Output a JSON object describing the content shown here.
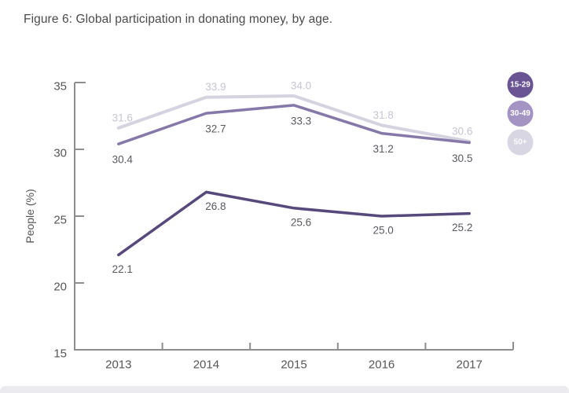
{
  "page": {
    "title": "Figure 6: Global participation in donating money, by age.",
    "background": "#ffffff",
    "footer_strip_color": "#ebeaee"
  },
  "chart_data": {
    "type": "line",
    "title": "Figure 6: Global participation in donating money, by age.",
    "xlabel": "",
    "ylabel": "People (%)",
    "categories": [
      "2013",
      "2014",
      "2015",
      "2016",
      "2017"
    ],
    "ylim": [
      15,
      35
    ],
    "yticks": [
      35,
      30,
      25,
      20,
      15
    ],
    "grid": false,
    "legend_position": "top-right",
    "axis_color": "#8e8e8e",
    "tick_label_color": "#565656",
    "axis_title_color": "#565656",
    "data_label_x_offsets": [
      5,
      12,
      9,
      2,
      -9
    ],
    "series": [
      {
        "name": "15-29",
        "values": [
          22.1,
          26.8,
          25.6,
          25.0,
          25.2
        ],
        "line_color": "#57497b",
        "legend_color": "#6a5494",
        "legend_text_color": "#ffffff",
        "label_color": "#5b585f",
        "label_position": "below",
        "label_dy": 18,
        "line_width": 3.5
      },
      {
        "name": "30-49",
        "values": [
          30.4,
          32.7,
          33.3,
          31.2,
          30.5
        ],
        "line_color": "#8678a8",
        "legend_color": "#a494c4",
        "legend_text_color": "#ffffff",
        "label_color": "#5b585f",
        "label_position": "below",
        "label_dy": 20,
        "line_width": 3.5
      },
      {
        "name": "50+",
        "values": [
          31.6,
          33.9,
          34.0,
          31.8,
          30.6
        ],
        "line_color": "#d6d3e1",
        "legend_color": "#d9d6e4",
        "legend_text_color": "#fbfbfd",
        "label_color": "#c7c4d4",
        "label_position": "above",
        "label_dy": -13,
        "line_width": 4
      }
    ]
  }
}
